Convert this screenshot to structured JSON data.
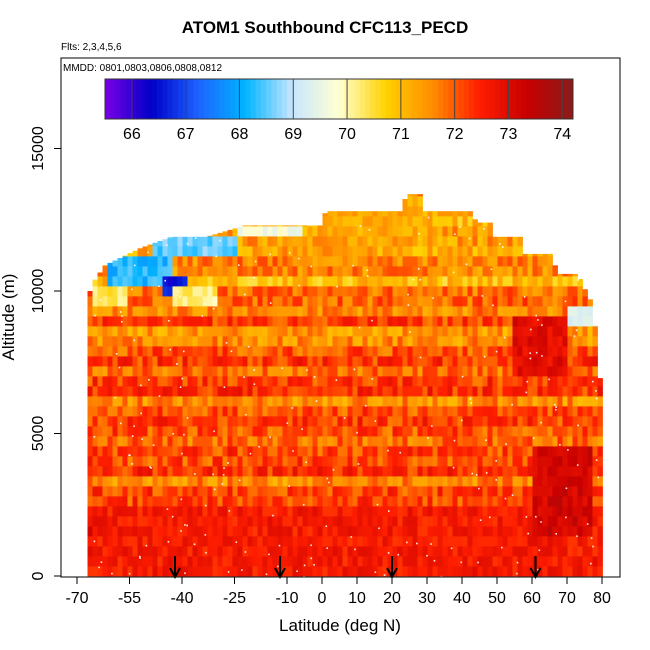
{
  "chart_data": {
    "type": "heatmap",
    "title": "ATOM1 Southbound CFC113_PECD",
    "subtitle": "Flts: 2,3,4,5,6",
    "annotation": "MMDD: 0801,0803,0806,0808,0812",
    "xlabel": "Latitude (deg N)",
    "ylabel": "Altitude (m)",
    "xlim": [
      -70,
      85
    ],
    "ylim": [
      0,
      18000
    ],
    "x_ticks": [
      -70,
      -55,
      -40,
      -25,
      -10,
      0,
      10,
      20,
      30,
      40,
      50,
      60,
      70,
      80
    ],
    "x_tick_labels": [
      "-70",
      "-55",
      "-40",
      "-25",
      "-10",
      "0",
      "10",
      "20",
      "30",
      "40",
      "50",
      "60",
      "70",
      "80"
    ],
    "y_ticks": [
      0,
      5000,
      10000,
      15000
    ],
    "y_tick_labels": [
      "0",
      "5000",
      "10000",
      "15000"
    ],
    "colorbar": {
      "range": [
        65.5,
        74.2
      ],
      "ticks": [
        66,
        67,
        68,
        69,
        70,
        71,
        72,
        73,
        74
      ],
      "tick_labels": [
        "66",
        "67",
        "68",
        "69",
        "70",
        "71",
        "72",
        "73",
        "74"
      ],
      "colors": [
        "#7a00e6",
        "#0000c8",
        "#1e64ff",
        "#00b4ff",
        "#c8e6ff",
        "#ffffd2",
        "#ffd200",
        "#ff8c00",
        "#ff1e00",
        "#c80000",
        "#8c1a1a"
      ]
    },
    "arrows_latitude": [
      -42,
      -12,
      20,
      61
    ],
    "envelope": [
      {
        "lat": -67,
        "top_alt": 9500
      },
      {
        "lat": -66,
        "top_alt": 10200
      },
      {
        "lat": -62,
        "top_alt": 10900
      },
      {
        "lat": -52,
        "top_alt": 11500
      },
      {
        "lat": -43,
        "top_alt": 11900
      },
      {
        "lat": -33,
        "top_alt": 11900
      },
      {
        "lat": -22,
        "top_alt": 12300
      },
      {
        "lat": 0,
        "top_alt": 12300
      },
      {
        "lat": 1,
        "top_alt": 12800
      },
      {
        "lat": 23,
        "top_alt": 12800
      },
      {
        "lat": 24,
        "top_alt": 13400
      },
      {
        "lat": 28,
        "top_alt": 13400
      },
      {
        "lat": 29,
        "top_alt": 12800
      },
      {
        "lat": 43,
        "top_alt": 12800
      },
      {
        "lat": 44,
        "top_alt": 12400
      },
      {
        "lat": 48,
        "top_alt": 12400
      },
      {
        "lat": 49,
        "top_alt": 11900
      },
      {
        "lat": 57,
        "top_alt": 11900
      },
      {
        "lat": 58,
        "top_alt": 11300
      },
      {
        "lat": 66,
        "top_alt": 11300
      },
      {
        "lat": 67,
        "top_alt": 10600
      },
      {
        "lat": 73,
        "top_alt": 10600
      },
      {
        "lat": 77,
        "top_alt": 9600
      },
      {
        "lat": 78,
        "top_alt": 8800
      },
      {
        "lat": 80,
        "top_alt": 6200
      }
    ],
    "features": [
      {
        "lat_range": [
          -61,
          -43
        ],
        "alt_range": [
          10300,
          11100
        ],
        "value": 68.2
      },
      {
        "lat_range": [
          -46,
          -38
        ],
        "alt_range": [
          10000,
          10600
        ],
        "value": 66.5
      },
      {
        "lat_range": [
          -48,
          -24
        ],
        "alt_range": [
          11300,
          11900
        ],
        "value": 68.5
      },
      {
        "lat_range": [
          -24,
          -5
        ],
        "alt_range": [
          11900,
          12300
        ],
        "value": 69.6
      },
      {
        "lat_range": [
          -42,
          -30
        ],
        "alt_range": [
          9500,
          10300
        ],
        "value": 70.2
      },
      {
        "lat_range": [
          -66,
          -56
        ],
        "alt_range": [
          9500,
          10300
        ],
        "value": 70.3
      },
      {
        "lat_range": [
          70,
          78
        ],
        "alt_range": [
          8600,
          9600
        ],
        "value": 69.3
      },
      {
        "lat_range": [
          0,
          30
        ],
        "alt_range": [
          11900,
          13400
        ],
        "value": 71.2
      },
      {
        "lat_range": [
          -10,
          10
        ],
        "alt_range": [
          10800,
          11800
        ],
        "value": 71.4
      },
      {
        "lat_range": [
          -66,
          80
        ],
        "alt_range": [
          0,
          2500
        ],
        "value": 72.6
      },
      {
        "lat_range": [
          60,
          77
        ],
        "alt_range": [
          1500,
          4500
        ],
        "value": 73.2
      },
      {
        "lat_range": [
          55,
          70
        ],
        "alt_range": [
          7000,
          9000
        ],
        "value": 72.9
      }
    ]
  }
}
